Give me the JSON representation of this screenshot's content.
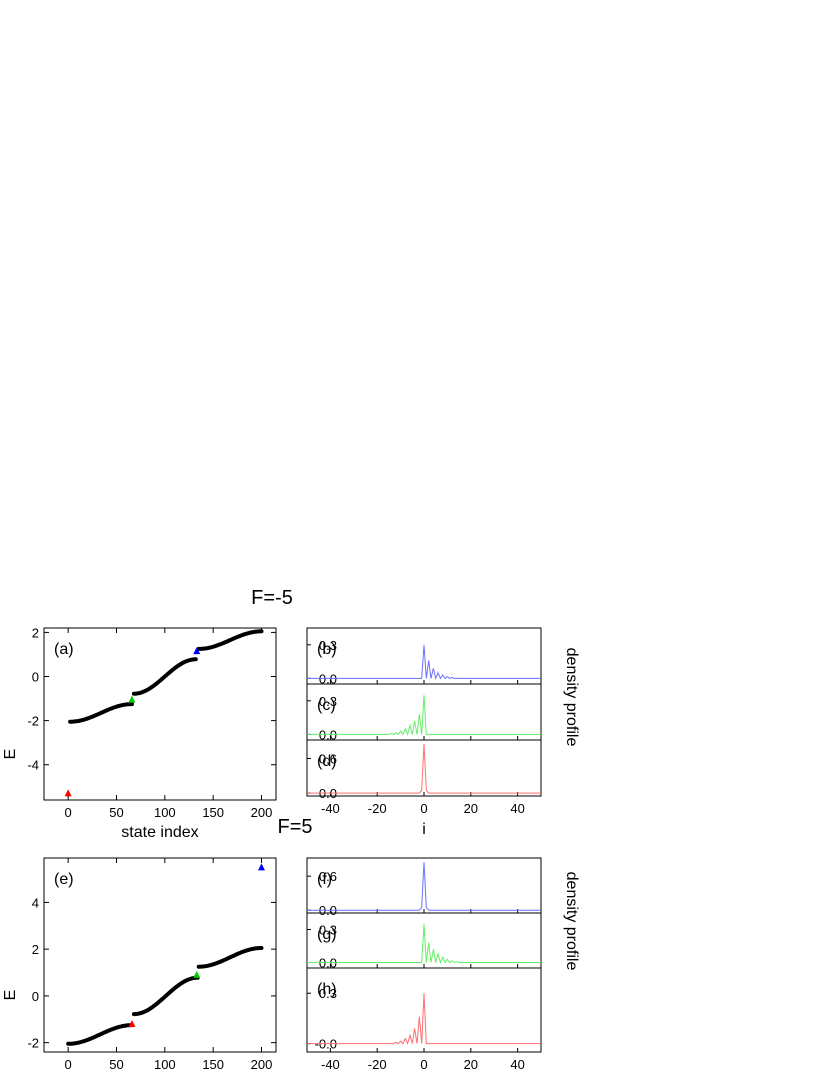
{
  "figure": {
    "title_top": "F=-5",
    "title_bottom": "F=5",
    "side_label": "density profile"
  },
  "chart_data": [
    {
      "panel": "(a)",
      "type": "scatter",
      "title": "F=-5",
      "xlabel": "state index",
      "ylabel": "E",
      "xlim": [
        -25,
        215
      ],
      "ylim": [
        -5.6,
        2.2
      ],
      "xticks": [
        0,
        50,
        100,
        150,
        200
      ],
      "yticks": [
        2,
        0,
        -2,
        -4
      ],
      "ytick_labels": [
        "2",
        "0",
        "-2",
        "-4"
      ],
      "bands": [
        {
          "x_start": 2,
          "x_end": 66,
          "center": -1.65,
          "half_width": 0.4
        },
        {
          "x_start": 68,
          "x_end": 132,
          "center": 0.0,
          "half_width": 0.78
        },
        {
          "x_start": 135,
          "x_end": 200,
          "center": 1.65,
          "half_width": 0.4
        }
      ],
      "markers": [
        {
          "x": 0,
          "y": -5.3,
          "color": "#ff0000"
        },
        {
          "x": 66,
          "y": -1.05,
          "color": "#00cc00"
        },
        {
          "x": 133,
          "y": 1.15,
          "color": "#0000ff"
        }
      ]
    },
    {
      "panel": "(b)",
      "type": "line",
      "color": "#6f6fff",
      "xlabel": "",
      "xlim": [
        -50,
        50
      ],
      "ylim": [
        -0.05,
        0.45
      ],
      "yticks": [
        0.0,
        0.3
      ],
      "ytick_labels": [
        "0.0",
        "0.3"
      ],
      "peaks": [
        [
          0,
          0.3
        ],
        [
          2,
          0.16
        ],
        [
          4,
          0.09
        ],
        [
          6,
          0.05
        ],
        [
          8,
          0.03
        ],
        [
          10,
          0.015
        ],
        [
          12,
          0.008
        ]
      ]
    },
    {
      "panel": "(c)",
      "type": "line",
      "color": "#66ee66",
      "xlim": [
        -50,
        50
      ],
      "ylim": [
        -0.05,
        0.45
      ],
      "yticks": [
        0.0,
        0.3
      ],
      "ytick_labels": [
        "0.0",
        "0.3"
      ],
      "peaks": [
        [
          0,
          0.35
        ],
        [
          -2,
          0.18
        ],
        [
          -4,
          0.12
        ],
        [
          -6,
          0.08
        ],
        [
          -8,
          0.05
        ],
        [
          -10,
          0.03
        ],
        [
          -12,
          0.015
        ],
        [
          -14,
          0.008
        ]
      ]
    },
    {
      "panel": "(d)",
      "type": "line",
      "color": "#ff6f6f",
      "xlim": [
        -50,
        50
      ],
      "ylim": [
        -0.05,
        0.92
      ],
      "yticks": [
        0.0,
        0.6
      ],
      "ytick_labels": [
        "0.0",
        "0.6"
      ],
      "peaks": [
        [
          0,
          0.85
        ],
        [
          1,
          0.05
        ],
        [
          -1,
          0.05
        ]
      ]
    },
    {
      "panel": "(e)",
      "type": "scatter",
      "title": "F=5",
      "xlabel": "state index",
      "ylabel": "E",
      "xlim": [
        -25,
        215
      ],
      "ylim": [
        -2.4,
        5.9
      ],
      "xticks": [
        0,
        50,
        100,
        150,
        200
      ],
      "yticks": [
        4,
        2,
        0,
        -2
      ],
      "ytick_labels": [
        "4",
        "2",
        "0",
        "-2"
      ],
      "bands": [
        {
          "x_start": 0,
          "x_end": 66,
          "center": -1.65,
          "half_width": 0.4
        },
        {
          "x_start": 68,
          "x_end": 134,
          "center": 0.0,
          "half_width": 0.78
        },
        {
          "x_start": 135,
          "x_end": 200,
          "center": 1.65,
          "half_width": 0.4
        }
      ],
      "markers": [
        {
          "x": 66,
          "y": -1.2,
          "color": "#ff0000"
        },
        {
          "x": 133,
          "y": 0.9,
          "color": "#00cc00"
        },
        {
          "x": 200,
          "y": 5.5,
          "color": "#0000ff"
        }
      ]
    },
    {
      "panel": "(f)",
      "type": "line",
      "color": "#6f6fff",
      "xlim": [
        -50,
        50
      ],
      "ylim": [
        -0.05,
        0.92
      ],
      "yticks": [
        0.0,
        0.6
      ],
      "ytick_labels": [
        "0.0",
        "0.6"
      ],
      "peaks": [
        [
          0,
          0.85
        ],
        [
          1,
          0.05
        ],
        [
          -1,
          0.05
        ]
      ]
    },
    {
      "panel": "(g)",
      "type": "line",
      "color": "#66ee66",
      "xlim": [
        -50,
        50
      ],
      "ylim": [
        -0.05,
        0.45
      ],
      "yticks": [
        0.0,
        0.3
      ],
      "ytick_labels": [
        "0.0",
        "0.3"
      ],
      "peaks": [
        [
          0,
          0.35
        ],
        [
          2,
          0.18
        ],
        [
          4,
          0.12
        ],
        [
          6,
          0.08
        ],
        [
          8,
          0.05
        ],
        [
          10,
          0.03
        ],
        [
          12,
          0.015
        ],
        [
          14,
          0.008
        ]
      ]
    },
    {
      "panel": "(h)",
      "type": "line",
      "color": "#ff6f6f",
      "xlabel": "i",
      "xlim": [
        -50,
        50
      ],
      "ylim": [
        -0.05,
        0.45
      ],
      "yticks": [
        0.0,
        0.3
      ],
      "ytick_labels": [
        "-0.0",
        "0.3"
      ],
      "xticks": [
        -40,
        -20,
        0,
        20,
        40
      ],
      "peaks": [
        [
          0,
          0.3
        ],
        [
          -2,
          0.16
        ],
        [
          -4,
          0.09
        ],
        [
          -6,
          0.05
        ],
        [
          -8,
          0.03
        ],
        [
          -10,
          0.015
        ],
        [
          -12,
          0.008
        ]
      ]
    }
  ],
  "density_xaxis": {
    "xticks": [
      -40,
      -20,
      0,
      20,
      40
    ],
    "xlabel": "i"
  }
}
